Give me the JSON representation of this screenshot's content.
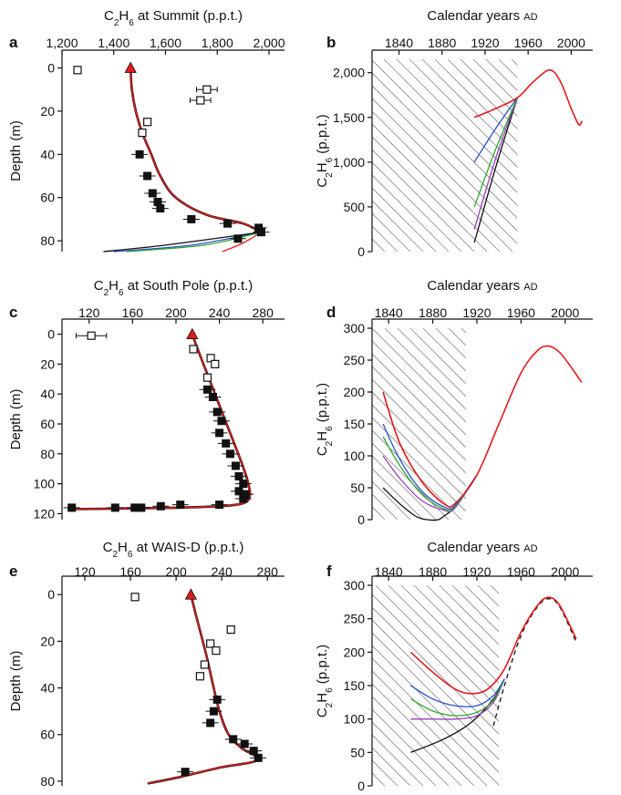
{
  "colors": {
    "red": "#e31a1c",
    "blue": "#2b50c8",
    "green": "#2fa62f",
    "purple": "#9b3fbf",
    "black": "#111111",
    "hatch": "#888888",
    "marker_red": "#e31a1c"
  },
  "chart_data": [
    {
      "panel": "a",
      "type": "scatter",
      "title_parts": [
        "C",
        "2",
        "H",
        "6",
        " at Summit (p.p.t.)"
      ],
      "ylabel": "Depth (m)",
      "xlim": [
        1200,
        2060
      ],
      "ylim": [
        -4,
        85
      ],
      "y_inverted": true,
      "xticks": [
        1200,
        1400,
        1600,
        1800,
        2000
      ],
      "xtick_labels": [
        "1,200",
        "1,400",
        "1,600",
        "1,800",
        "2,000"
      ],
      "yticks": [
        0,
        20,
        40,
        60,
        80
      ],
      "open_points": [
        {
          "x": 1260,
          "y": 1,
          "xerr": 10
        },
        {
          "x": 1760,
          "y": 10,
          "xerr": 40
        },
        {
          "x": 1735,
          "y": 15,
          "xerr": 40
        },
        {
          "x": 1530,
          "y": 25,
          "xerr": 8
        },
        {
          "x": 1510,
          "y": 30,
          "xerr": 10
        }
      ],
      "filled_points": [
        {
          "x": 1500,
          "y": 40
        },
        {
          "x": 1530,
          "y": 50
        },
        {
          "x": 1550,
          "y": 58
        },
        {
          "x": 1570,
          "y": 62
        },
        {
          "x": 1580,
          "y": 65
        },
        {
          "x": 1700,
          "y": 70
        },
        {
          "x": 1840,
          "y": 72
        },
        {
          "x": 1960,
          "y": 74
        },
        {
          "x": 1970,
          "y": 76
        },
        {
          "x": 1880,
          "y": 79
        }
      ],
      "triangle": {
        "x": 1465,
        "y": 0
      },
      "fit_main": {
        "x": [
          1465,
          1470,
          1485,
          1510,
          1545,
          1580,
          1640,
          1760,
          1900,
          1970
        ],
        "y": [
          0,
          10,
          20,
          30,
          40,
          50,
          60,
          68,
          72,
          76
        ]
      },
      "fit_tails": {
        "red": {
          "x": [
            1970,
            1900,
            1820
          ],
          "y": [
            76,
            81,
            85
          ]
        },
        "blue": {
          "x": [
            1970,
            1700,
            1400
          ],
          "y": [
            76,
            82,
            85
          ]
        },
        "green": {
          "x": [
            1970,
            1750,
            1450
          ],
          "y": [
            76,
            82,
            85
          ]
        },
        "black": {
          "x": [
            1970,
            1600,
            1360
          ],
          "y": [
            76,
            82,
            85
          ]
        }
      }
    },
    {
      "panel": "b",
      "type": "line",
      "title_parts": [
        "Calendar years ",
        "AD"
      ],
      "ylabel_parts": [
        "C",
        "2",
        "H",
        "6",
        " (p.p.t.)"
      ],
      "xlim": [
        1815,
        2020
      ],
      "ylim": [
        0,
        2150
      ],
      "xticks": [
        1840,
        1880,
        1920,
        1960,
        2000
      ],
      "yticks": [
        0,
        500,
        1000,
        1500,
        2000
      ],
      "ytick_labels": [
        "0",
        "500",
        "1,000",
        "1,500",
        "2,000"
      ],
      "hatch_xrange": [
        1815,
        1950
      ],
      "series": [
        {
          "color": "red",
          "x": [
            1910,
            1930,
            1950,
            1965,
            1980,
            1990,
            2000,
            2007,
            2010
          ],
          "y": [
            1500,
            1600,
            1720,
            1900,
            2030,
            1900,
            1600,
            1420,
            1460
          ]
        },
        {
          "color": "blue",
          "x": [
            1910,
            1930,
            1950
          ],
          "y": [
            1000,
            1380,
            1720
          ]
        },
        {
          "color": "green",
          "x": [
            1910,
            1930,
            1950
          ],
          "y": [
            500,
            1150,
            1720
          ]
        },
        {
          "color": "purple",
          "x": [
            1910,
            1930,
            1950
          ],
          "y": [
            250,
            1050,
            1720
          ]
        },
        {
          "color": "black",
          "x": [
            1910,
            1930,
            1950
          ],
          "y": [
            100,
            950,
            1720
          ]
        }
      ]
    },
    {
      "panel": "c",
      "type": "scatter",
      "title_parts": [
        "C",
        "2",
        "H",
        "6",
        " at South Pole (p.p.t.)"
      ],
      "ylabel": "Depth (m)",
      "xlim": [
        95,
        300
      ],
      "ylim": [
        -4,
        124
      ],
      "y_inverted": true,
      "xticks": [
        120,
        160,
        200,
        240,
        280
      ],
      "xtick_labels": [
        "120",
        "160",
        "200",
        "240",
        "280"
      ],
      "yticks": [
        0,
        20,
        40,
        60,
        80,
        100,
        120
      ],
      "open_points": [
        {
          "x": 122,
          "y": 1,
          "xerr": 14
        },
        {
          "x": 216,
          "y": 10,
          "xerr": 3
        },
        {
          "x": 232,
          "y": 16,
          "xerr": 3
        },
        {
          "x": 236,
          "y": 20,
          "xerr": 3
        },
        {
          "x": 229,
          "y": 29,
          "xerr": 3
        }
      ],
      "filled_points": [
        {
          "x": 229,
          "y": 37
        },
        {
          "x": 234,
          "y": 42
        },
        {
          "x": 238,
          "y": 52
        },
        {
          "x": 242,
          "y": 58
        },
        {
          "x": 240,
          "y": 66
        },
        {
          "x": 246,
          "y": 73
        },
        {
          "x": 250,
          "y": 80
        },
        {
          "x": 255,
          "y": 88
        },
        {
          "x": 258,
          "y": 95
        },
        {
          "x": 262,
          "y": 100
        },
        {
          "x": 258,
          "y": 105
        },
        {
          "x": 264,
          "y": 107
        },
        {
          "x": 262,
          "y": 110
        },
        {
          "x": 240,
          "y": 114
        },
        {
          "x": 204,
          "y": 114
        },
        {
          "x": 186,
          "y": 115
        },
        {
          "x": 168,
          "y": 116
        },
        {
          "x": 162,
          "y": 116
        },
        {
          "x": 144,
          "y": 116
        },
        {
          "x": 104,
          "y": 116
        }
      ],
      "triangle": {
        "x": 215,
        "y": 0
      },
      "fit_main": {
        "x": [
          215,
          220,
          228,
          236,
          244,
          252,
          260,
          266,
          268,
          262,
          240,
          200,
          150,
          100
        ],
        "y": [
          0,
          10,
          25,
          40,
          55,
          70,
          85,
          98,
          108,
          113,
          115,
          116,
          116.5,
          117
        ]
      },
      "fit_tails": {}
    },
    {
      "panel": "d",
      "type": "line",
      "title_parts": [
        "Calendar years ",
        "AD"
      ],
      "ylabel_parts": [
        "C",
        "2",
        "H",
        "6",
        " (p.p.t.)"
      ],
      "xlim": [
        1825,
        2025
      ],
      "ylim": [
        0,
        300
      ],
      "xticks": [
        1840,
        1880,
        1920,
        1960,
        2000
      ],
      "yticks": [
        0,
        50,
        100,
        150,
        200,
        250,
        300
      ],
      "ytick_labels": [
        "0",
        "50",
        "100",
        "150",
        "200",
        "250",
        "300"
      ],
      "hatch_xrange": [
        1825,
        1910
      ],
      "series": [
        {
          "color": "red",
          "x": [
            1835,
            1850,
            1870,
            1890,
            1900,
            1920,
            1940,
            1960,
            1975,
            1985,
            1995,
            2005,
            2015
          ],
          "y": [
            200,
            120,
            60,
            25,
            25,
            70,
            150,
            230,
            265,
            272,
            262,
            240,
            215
          ]
        },
        {
          "color": "blue",
          "x": [
            1835,
            1850,
            1870,
            1890,
            1900,
            1920
          ],
          "y": [
            150,
            95,
            45,
            20,
            22,
            70
          ]
        },
        {
          "color": "green",
          "x": [
            1835,
            1850,
            1870,
            1890,
            1900,
            1920
          ],
          "y": [
            130,
            85,
            40,
            17,
            20,
            70
          ]
        },
        {
          "color": "purple",
          "x": [
            1835,
            1850,
            1870,
            1890,
            1900,
            1920
          ],
          "y": [
            100,
            65,
            30,
            15,
            18,
            70
          ]
        },
        {
          "color": "black",
          "x": [
            1835,
            1850,
            1865,
            1875,
            1885,
            1892,
            1900,
            1920
          ],
          "y": [
            50,
            25,
            5,
            0,
            0,
            8,
            20,
            70
          ]
        }
      ]
    },
    {
      "panel": "e",
      "type": "scatter",
      "title_parts": [
        "C",
        "2",
        "H",
        "6",
        " at WAIS-D (p.p.t.)"
      ],
      "ylabel": "Depth (m)",
      "xlim": [
        100,
        295
      ],
      "ylim": [
        -4,
        82
      ],
      "y_inverted": true,
      "xticks": [
        120,
        160,
        200,
        240,
        280
      ],
      "xtick_labels": [
        "120",
        "160",
        "200",
        "240",
        "280"
      ],
      "yticks": [
        0,
        20,
        40,
        60,
        80
      ],
      "open_points": [
        {
          "x": 164,
          "y": 1,
          "xerr": 3
        },
        {
          "x": 248,
          "y": 15,
          "xerr": 3
        },
        {
          "x": 230,
          "y": 21,
          "xerr": 3
        },
        {
          "x": 235,
          "y": 24,
          "xerr": 3
        },
        {
          "x": 225,
          "y": 30,
          "xerr": 3
        },
        {
          "x": 221,
          "y": 35,
          "xerr": 2
        }
      ],
      "filled_points": [
        {
          "x": 236,
          "y": 45
        },
        {
          "x": 233,
          "y": 50
        },
        {
          "x": 230,
          "y": 55
        },
        {
          "x": 250,
          "y": 62
        },
        {
          "x": 260,
          "y": 64
        },
        {
          "x": 268,
          "y": 67
        },
        {
          "x": 272,
          "y": 70
        },
        {
          "x": 208,
          "y": 76
        }
      ],
      "triangle": {
        "x": 213,
        "y": 0
      },
      "fit_main": {
        "x": [
          213,
          218,
          226,
          232,
          238,
          246,
          258,
          272,
          265,
          240,
          205,
          175
        ],
        "y": [
          0,
          10,
          25,
          38,
          50,
          60,
          66,
          70,
          72,
          74,
          78,
          81
        ]
      },
      "fit_tails": {}
    },
    {
      "panel": "f",
      "type": "line",
      "title_parts": [
        "Calendar years ",
        "AD"
      ],
      "ylabel_parts": [
        "C",
        "2",
        "H",
        "6",
        " (p.p.t.)"
      ],
      "xlim": [
        1825,
        2025
      ],
      "ylim": [
        0,
        300
      ],
      "xticks": [
        1840,
        1880,
        1920,
        1960,
        2000
      ],
      "yticks": [
        0,
        50,
        100,
        150,
        200,
        250,
        300
      ],
      "ytick_labels": [
        "0",
        "50",
        "100",
        "150",
        "200",
        "250",
        "300"
      ],
      "hatch_xrange": [
        1825,
        1940
      ],
      "series": [
        {
          "color": "red",
          "x": [
            1860,
            1880,
            1900,
            1915,
            1930,
            1945,
            1960,
            1975,
            1985,
            1995,
            2010
          ],
          "y": [
            200,
            170,
            145,
            138,
            145,
            175,
            230,
            270,
            282,
            270,
            220
          ]
        },
        {
          "color": "blue",
          "x": [
            1860,
            1880,
            1900,
            1920,
            1935,
            1945
          ],
          "y": [
            150,
            130,
            120,
            120,
            135,
            160
          ]
        },
        {
          "color": "green",
          "x": [
            1860,
            1880,
            1900,
            1920,
            1935,
            1945
          ],
          "y": [
            130,
            112,
            105,
            110,
            128,
            160
          ]
        },
        {
          "color": "purple",
          "x": [
            1860,
            1880,
            1900,
            1920,
            1935,
            1945
          ],
          "y": [
            100,
            100,
            100,
            105,
            125,
            160
          ]
        },
        {
          "color": "black",
          "x": [
            1860,
            1890,
            1915,
            1935,
            1945
          ],
          "y": [
            50,
            70,
            95,
            130,
            160
          ]
        }
      ],
      "dashed": {
        "x": [
          1935,
          1945,
          1960,
          1975,
          1985,
          1995,
          2010
        ],
        "y": [
          90,
          150,
          225,
          268,
          280,
          268,
          215
        ]
      }
    }
  ]
}
